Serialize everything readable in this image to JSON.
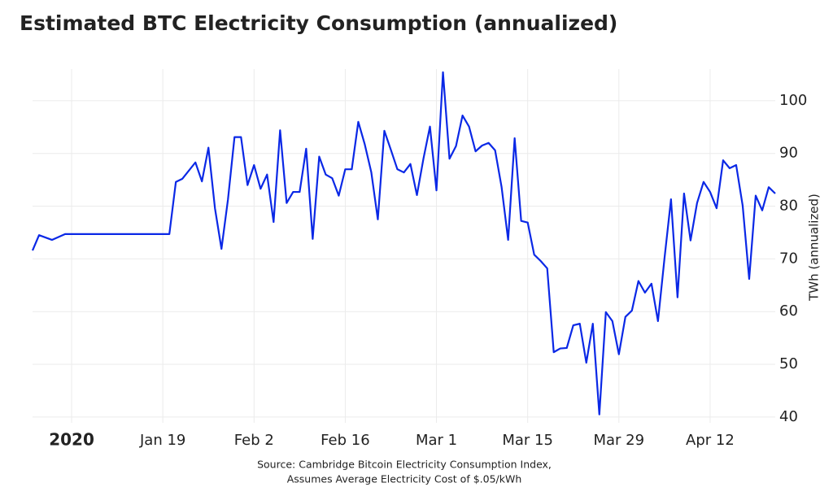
{
  "chart_data": {
    "type": "line",
    "title": "Estimated BTC Electricity Consumption (annualized)",
    "y_label": "TWh (annualized)",
    "source": [
      "Source: Cambridge Bitcoin Electricity Consumption Index,",
      "Assumes Average Electricity Cost of $.05/kWh"
    ],
    "grid": true,
    "xlim": [
      "2019-12-30",
      "2020-04-22"
    ],
    "ylim": [
      38.9,
      106
    ],
    "xticks": [
      {
        "value": "2020-01-05",
        "label": "2020"
      },
      {
        "value": "2020-01-19",
        "label": "Jan 19"
      },
      {
        "value": "2020-02-02",
        "label": "Feb 2"
      },
      {
        "value": "2020-02-16",
        "label": "Feb 16"
      },
      {
        "value": "2020-03-01",
        "label": "Mar 1"
      },
      {
        "value": "2020-03-15",
        "label": "Mar 15"
      },
      {
        "value": "2020-03-29",
        "label": "Mar 29"
      },
      {
        "value": "2020-04-12",
        "label": "Apr 12"
      }
    ],
    "yticks": [
      40,
      50,
      60,
      70,
      80,
      90,
      100
    ],
    "x": [
      "2019-12-30",
      "2019-12-31",
      "2020-01-02",
      "2020-01-04",
      "2020-01-20",
      "2020-01-21",
      "2020-01-22",
      "2020-01-24",
      "2020-01-25",
      "2020-01-26",
      "2020-01-27",
      "2020-01-28",
      "2020-01-29",
      "2020-01-30",
      "2020-01-31",
      "2020-02-01",
      "2020-02-02",
      "2020-02-03",
      "2020-02-04",
      "2020-02-05",
      "2020-02-06",
      "2020-02-07",
      "2020-02-08",
      "2020-02-09",
      "2020-02-10",
      "2020-02-11",
      "2020-02-12",
      "2020-02-13",
      "2020-02-14",
      "2020-02-15",
      "2020-02-16",
      "2020-02-17",
      "2020-02-18",
      "2020-02-19",
      "2020-02-20",
      "2020-02-21",
      "2020-02-22",
      "2020-02-23",
      "2020-02-24",
      "2020-02-25",
      "2020-02-26",
      "2020-02-27",
      "2020-02-28",
      "2020-02-29",
      "2020-03-01",
      "2020-03-02",
      "2020-03-03",
      "2020-03-04",
      "2020-03-05",
      "2020-03-06",
      "2020-03-07",
      "2020-03-08",
      "2020-03-09",
      "2020-03-10",
      "2020-03-11",
      "2020-03-12",
      "2020-03-13",
      "2020-03-14",
      "2020-03-15",
      "2020-03-16",
      "2020-03-17",
      "2020-03-18",
      "2020-03-19",
      "2020-03-20",
      "2020-03-21",
      "2020-03-22",
      "2020-03-23",
      "2020-03-24",
      "2020-03-25",
      "2020-03-26",
      "2020-03-27",
      "2020-03-28",
      "2020-03-29",
      "2020-03-30",
      "2020-03-31",
      "2020-04-01",
      "2020-04-02",
      "2020-04-03",
      "2020-04-04",
      "2020-04-05",
      "2020-04-06",
      "2020-04-07",
      "2020-04-08",
      "2020-04-09",
      "2020-04-10",
      "2020-04-11",
      "2020-04-12",
      "2020-04-13",
      "2020-04-14",
      "2020-04-15",
      "2020-04-16",
      "2020-04-17",
      "2020-04-18",
      "2020-04-19",
      "2020-04-20",
      "2020-04-21",
      "2020-04-22"
    ],
    "series": [
      {
        "name": "BTC electricity consumption",
        "color": "#0a28e6",
        "values": [
          71.6,
          74.5,
          73.6,
          74.7,
          74.7,
          84.6,
          85.2,
          88.3,
          84.7,
          91.1,
          79.6,
          71.9,
          81.3,
          93.1,
          93.1,
          84.0,
          87.8,
          83.3,
          86.0,
          77.0,
          94.4,
          80.6,
          82.7,
          82.7,
          90.9,
          73.8,
          89.4,
          86.0,
          85.3,
          82.0,
          87.0,
          87.0,
          96.0,
          91.7,
          86.4,
          77.5,
          94.3,
          90.7,
          87.0,
          86.4,
          88.0,
          82.1,
          89.0,
          95.1,
          83.0,
          105.4,
          89.0,
          91.4,
          97.2,
          95.1,
          90.4,
          91.5,
          92.0,
          90.6,
          83.6,
          73.6,
          92.9,
          77.2,
          76.9,
          70.8,
          69.6,
          68.2,
          52.3,
          53.0,
          53.1,
          57.4,
          57.7,
          50.3,
          57.7,
          40.5,
          59.9,
          58.2,
          51.9,
          59.0,
          60.2,
          65.8,
          63.6,
          65.3,
          58.2,
          70.1,
          81.3,
          62.7,
          82.4,
          73.5,
          80.6,
          84.6,
          82.7,
          79.6,
          88.7,
          87.2,
          87.8,
          80.1,
          66.2,
          82.0,
          79.2,
          83.6,
          82.4
        ]
      }
    ]
  }
}
